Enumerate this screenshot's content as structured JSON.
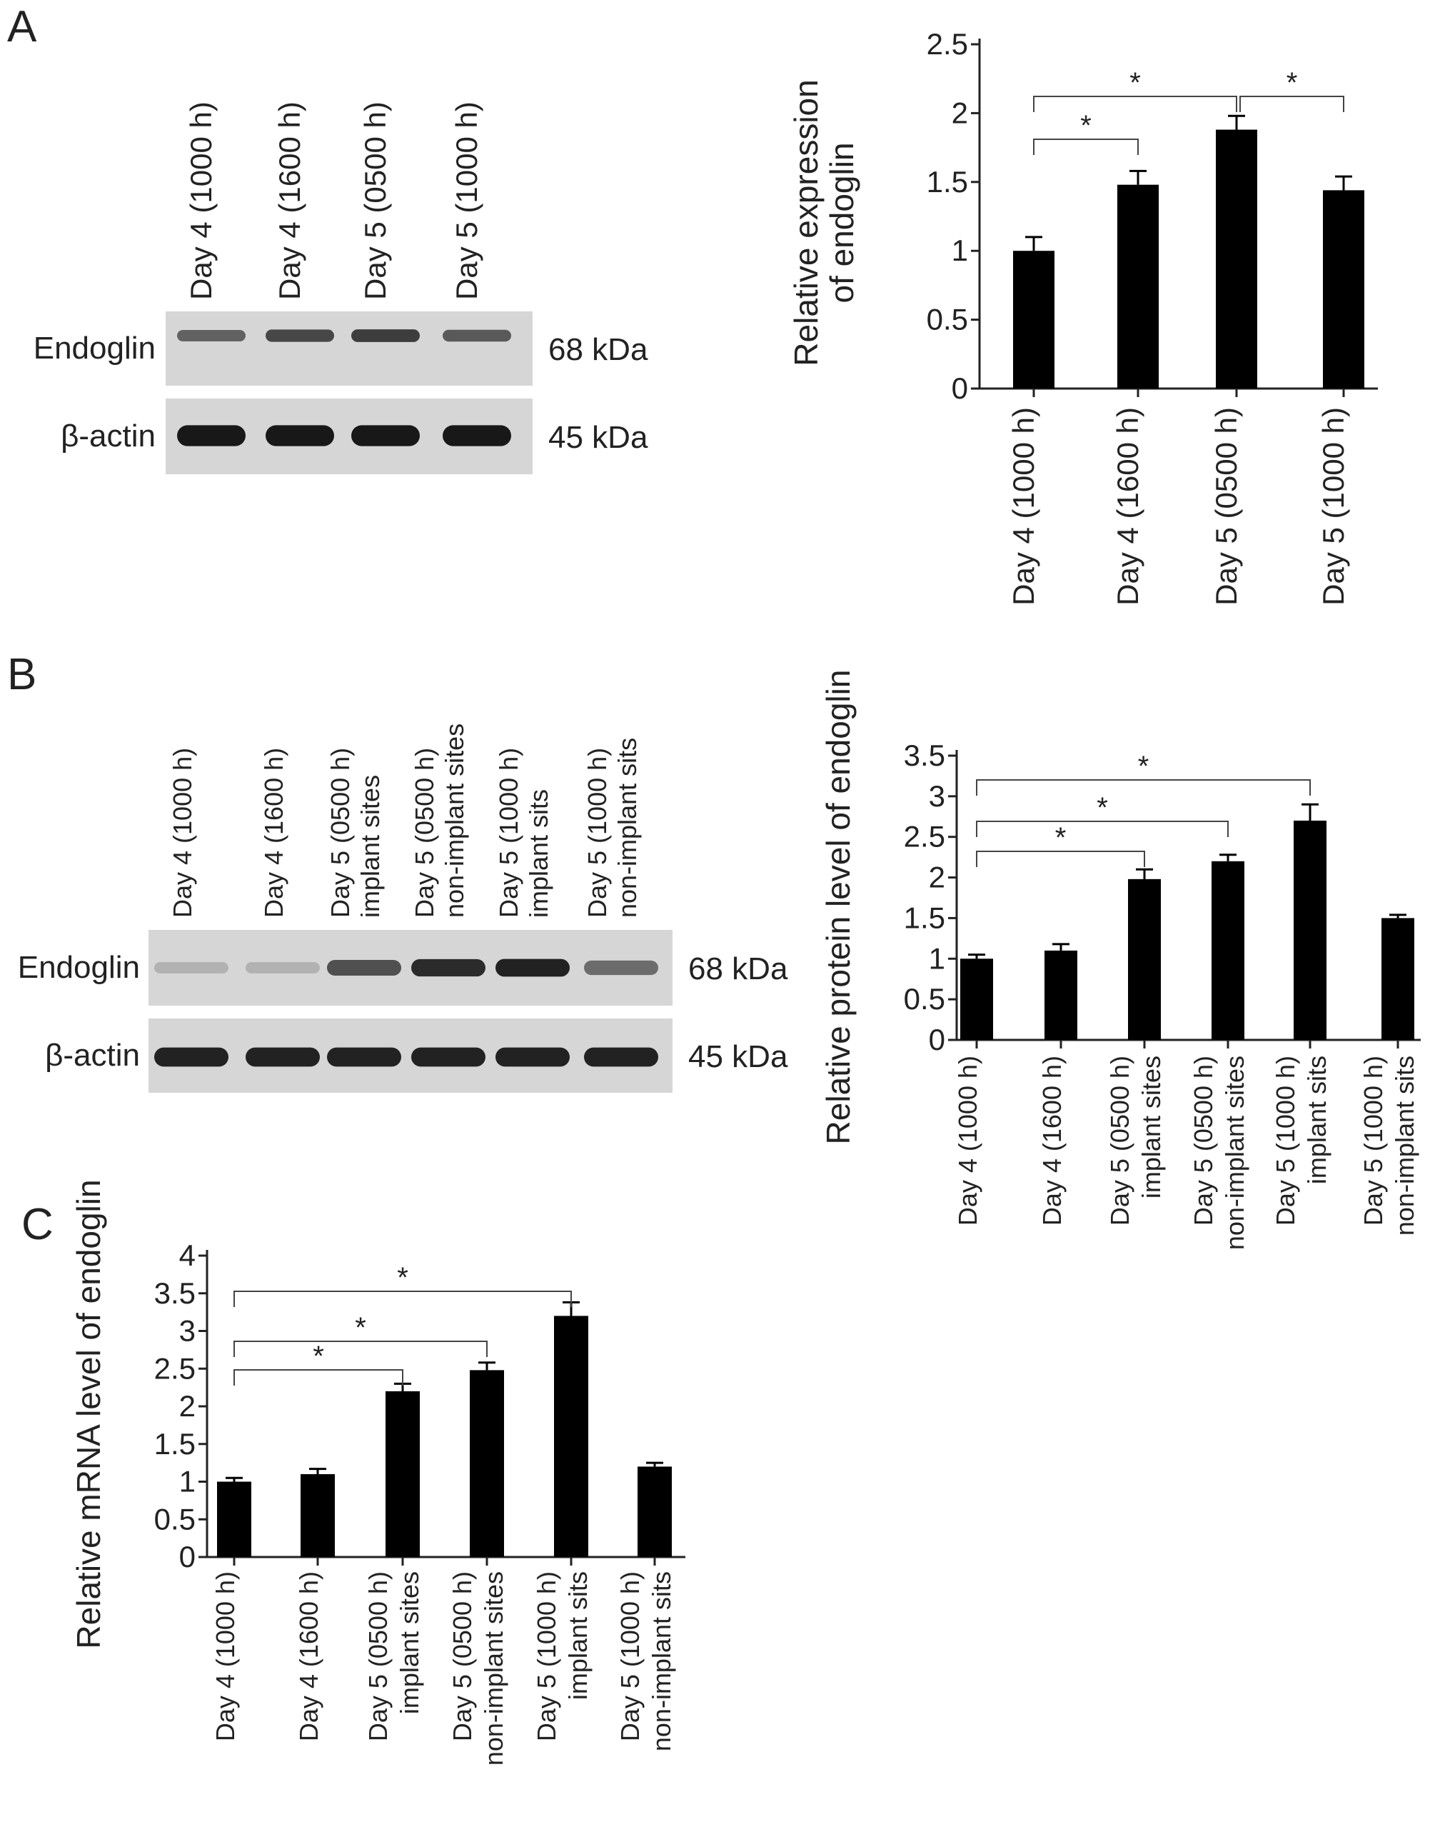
{
  "panels": [
    {
      "letter": "A",
      "blot": {
        "lanes": [
          "Day 4 (1000 h)",
          "Day 4 (1600 h)",
          "Day 5 (0500 h)",
          "Day 5 (1000 h)"
        ],
        "rows": [
          {
            "label": "Endoglin",
            "size": "68 kDa",
            "intensity": [
              0.55,
              0.7,
              0.75,
              0.6
            ]
          },
          {
            "label": "β-actin",
            "size": "45 kDa",
            "intensity": [
              0.95,
              0.95,
              0.95,
              0.95
            ]
          }
        ]
      }
    },
    {
      "letter": "B",
      "blot": {
        "lanes": [
          "Day 4 (1000 h)",
          "Day 4 (1600 h)",
          "Day 5 (0500 h)\nimplant sites",
          "Day 5 (0500 h)\nnon-implant sites",
          "Day 5 (1000 h)\nimplant sits",
          "Day 5 (1000 h)\nnon-implant sits"
        ],
        "rows": [
          {
            "label": "Endoglin",
            "size": "68 kDa",
            "intensity": [
              0.12,
              0.12,
              0.65,
              0.85,
              0.9,
              0.5
            ]
          },
          {
            "label": "β-actin",
            "size": "45 kDa",
            "intensity": [
              0.9,
              0.9,
              0.9,
              0.9,
              0.9,
              0.9
            ]
          }
        ]
      }
    },
    {
      "letter": "C"
    }
  ],
  "chart_data": [
    {
      "type": "bar",
      "panel": "A",
      "ylabel": "Relative expression\nof endoglin",
      "ylim": [
        0,
        2.5
      ],
      "yticks": [
        "0",
        "0.5",
        "1",
        "1.5",
        "2",
        "2.5"
      ],
      "categories": [
        "Day 4 (1000 h)",
        "Day 4 (1600 h)",
        "Day 5 (0500 h)",
        "Day 5 (1000 h)"
      ],
      "values": [
        1.0,
        1.48,
        1.88,
        1.44
      ],
      "errors": [
        0.1,
        0.1,
        0.1,
        0.1
      ],
      "significance": [
        {
          "from": 0,
          "to": 1,
          "label": "*"
        },
        {
          "from": 0,
          "to": 2,
          "label": "*"
        },
        {
          "from": 2,
          "to": 3,
          "label": "*"
        }
      ]
    },
    {
      "type": "bar",
      "panel": "B",
      "ylabel": "Relative protein level of endoglin",
      "ylim": [
        0,
        3.5
      ],
      "yticks": [
        "0",
        "0.5",
        "1",
        "1.5",
        "2",
        "2.5",
        "3",
        "3.5"
      ],
      "categories": [
        "Day 4 (1000 h)",
        "Day 4 (1600 h)",
        "Day 5 (0500 h)\nimplant sites",
        "Day 5 (0500 h)\nnon-implant sites",
        "Day 5 (1000 h)\nimplant sits",
        "Day 5 (1000 h)\nnon-implant sits"
      ],
      "values": [
        1.0,
        1.1,
        1.98,
        2.2,
        2.7,
        1.5
      ],
      "errors": [
        0.05,
        0.08,
        0.12,
        0.08,
        0.2,
        0.04
      ],
      "significance": [
        {
          "from": 0,
          "to": 2,
          "label": "*"
        },
        {
          "from": 0,
          "to": 3,
          "label": "*"
        },
        {
          "from": 0,
          "to": 4,
          "label": "*"
        }
      ]
    },
    {
      "type": "bar",
      "panel": "C",
      "ylabel": "Relative mRNA level of endoglin",
      "ylim": [
        0,
        4
      ],
      "yticks": [
        "0",
        "0.5",
        "1",
        "1.5",
        "2",
        "2.5",
        "3",
        "3.5",
        "4"
      ],
      "categories": [
        "Day 4 (1000 h)",
        "Day 4 (1600 h)",
        "Day 5 (0500 h)\nimplant sites",
        "Day 5 (0500 h)\nnon-implant sites",
        "Day 5 (1000 h)\nimplant sits",
        "Day 5 (1000 h)\nnon-implant sits"
      ],
      "values": [
        1.0,
        1.1,
        2.2,
        2.48,
        3.2,
        1.2
      ],
      "errors": [
        0.05,
        0.07,
        0.1,
        0.1,
        0.18,
        0.05
      ],
      "significance": [
        {
          "from": 0,
          "to": 2,
          "label": "*"
        },
        {
          "from": 0,
          "to": 3,
          "label": "*"
        },
        {
          "from": 0,
          "to": 4,
          "label": "*"
        }
      ]
    }
  ]
}
